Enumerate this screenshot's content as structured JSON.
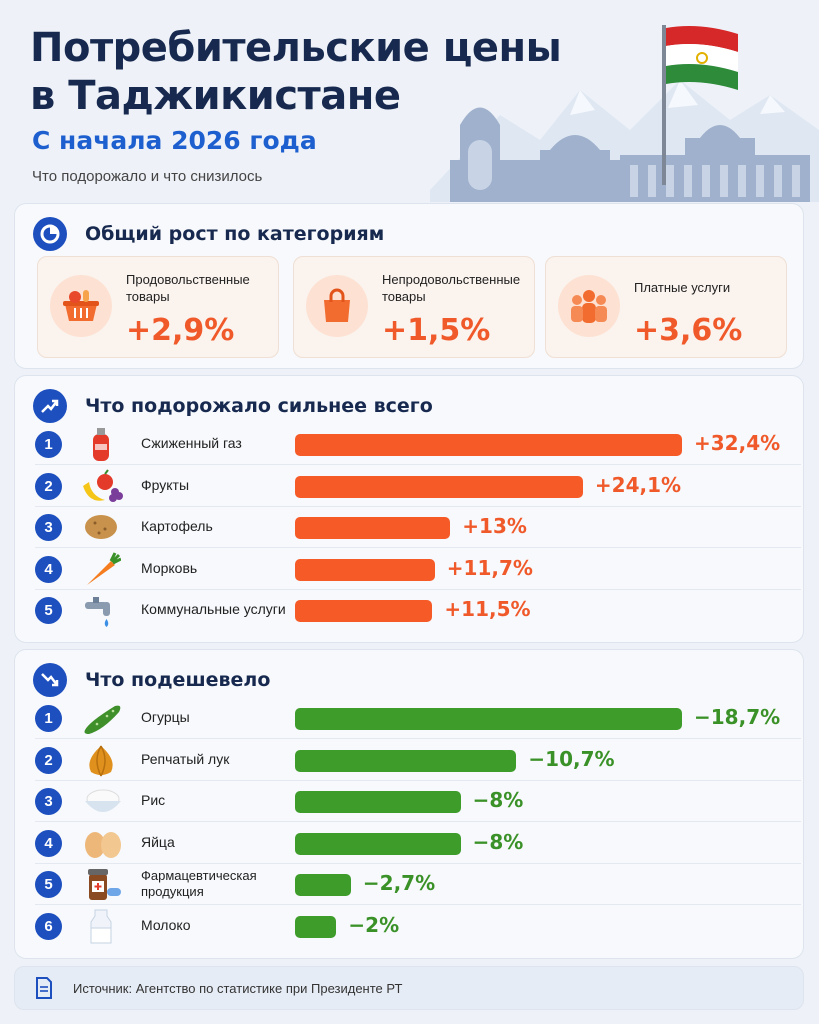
{
  "header": {
    "title": "Потребительские цены\nв Таджикистане",
    "subtitle": "С начала 2026 года",
    "tagline": "Что подорожало и что снизилось"
  },
  "categories_section": {
    "title": "Общий рост по категориям",
    "items": [
      {
        "label": "Продовольственные\nтовары",
        "value": "+2,9%",
        "icon": "food-basket-icon"
      },
      {
        "label": "Непродовольственные\nтовары",
        "value": "+1,5%",
        "icon": "shopping-bag-icon"
      },
      {
        "label": "Платные услуги",
        "value": "+3,6%",
        "icon": "people-icon"
      }
    ]
  },
  "chart_data": [
    {
      "type": "bar",
      "title": "Что подорожало сильнее всего",
      "categories": [
        "Сжиженный газ",
        "Фрукты",
        "Картофель",
        "Морковь",
        "Коммунальные услуги"
      ],
      "values": [
        32.4,
        24.1,
        13,
        11.7,
        11.5
      ],
      "labels": [
        "+32,4%",
        "+24,1%",
        "+13%",
        "+11,7%",
        "+11,5%"
      ],
      "icons": [
        "gas-cylinder-icon",
        "fruits-icon",
        "potato-icon",
        "carrot-icon",
        "water-tap-icon"
      ],
      "color": "#f55a27"
    },
    {
      "type": "bar",
      "title": "Что подешевело",
      "categories": [
        "Огурцы",
        "Репчатый лук",
        "Рис",
        "Яйца",
        "Фармацевтическая\nпродукция",
        "Молоко"
      ],
      "values": [
        -18.7,
        -10.7,
        -8,
        -8,
        -2.7,
        -2
      ],
      "labels": [
        "−18,7%",
        "−10,7%",
        "−8%",
        "−8%",
        "−2,7%",
        "−2%"
      ],
      "icons": [
        "cucumber-icon",
        "onion-icon",
        "rice-icon",
        "eggs-icon",
        "medicine-icon",
        "milk-icon"
      ],
      "color": "#3d9c2a"
    }
  ],
  "footer": {
    "source": "Источник: Агентство по статистике при Президенте РТ"
  },
  "colors": {
    "navy": "#17294f",
    "blue": "#1d4fbf",
    "orange": "#f55a27",
    "green": "#3d9c2a"
  }
}
